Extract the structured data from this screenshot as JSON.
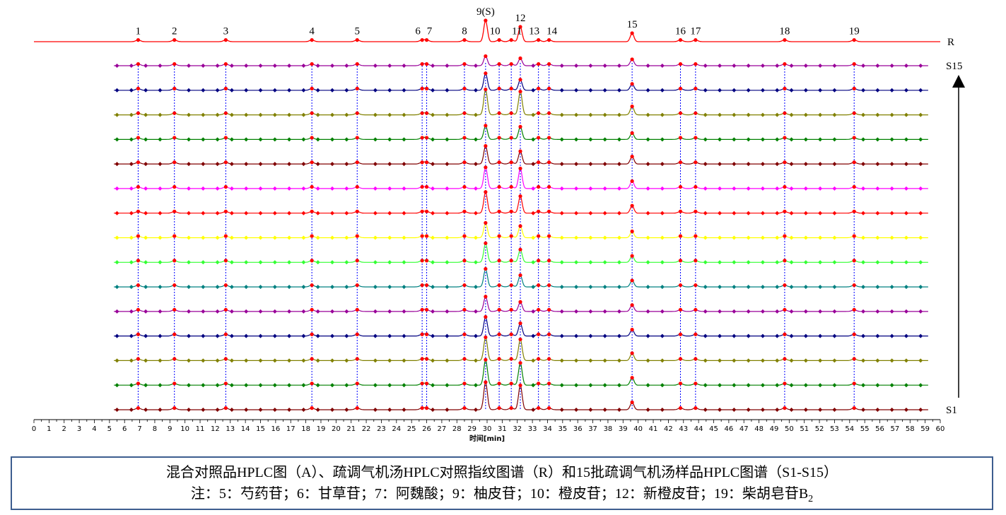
{
  "chart_data": {
    "type": "line",
    "title": "",
    "xlabel": "时间[min]",
    "ylabel": "",
    "xlim": [
      0,
      60
    ],
    "x_ticks": [
      "0",
      "1",
      "2",
      "3",
      "4",
      "5",
      "6",
      "7",
      "8",
      "9",
      "10",
      "11",
      "12",
      "13",
      "14",
      "15",
      "16",
      "17",
      "18",
      "19",
      "20",
      "21",
      "22",
      "23",
      "24",
      "25",
      "26",
      "27",
      "28",
      "29",
      "30",
      "31",
      "32",
      "33",
      "34",
      "35",
      "36",
      "37",
      "38",
      "39",
      "40",
      "41",
      "42",
      "43",
      "44",
      "45",
      "46",
      "47",
      "48",
      "49",
      "50",
      "51",
      "52",
      "53",
      "54",
      "55",
      "56",
      "57",
      "58",
      "59",
      "60"
    ],
    "peaks": [
      {
        "label": "1",
        "rt": 6.9
      },
      {
        "label": "2",
        "rt": 9.3
      },
      {
        "label": "3",
        "rt": 12.7
      },
      {
        "label": "4",
        "rt": 18.4
      },
      {
        "label": "5",
        "rt": 21.4
      },
      {
        "label": "6",
        "rt": 25.7
      },
      {
        "label": "7",
        "rt": 26.0
      },
      {
        "label": "8",
        "rt": 28.5
      },
      {
        "label": "9(S)",
        "rt": 29.9
      },
      {
        "label": "10",
        "rt": 30.8
      },
      {
        "label": "11",
        "rt": 31.6
      },
      {
        "label": "12",
        "rt": 32.2
      },
      {
        "label": "13",
        "rt": 33.4
      },
      {
        "label": "14",
        "rt": 34.1
      },
      {
        "label": "15",
        "rt": 39.6
      },
      {
        "label": "16",
        "rt": 42.8
      },
      {
        "label": "17",
        "rt": 43.8
      },
      {
        "label": "18",
        "rt": 49.7
      },
      {
        "label": "19",
        "rt": 54.3
      }
    ],
    "series": [
      {
        "name": "R",
        "color": "#ff0000",
        "heights": {
          "9(S)": 1.0,
          "12": 0.7,
          "15": 0.4
        }
      },
      {
        "name": "S15",
        "color": "#990099",
        "heights": {
          "9(S)": 0.45,
          "12": 0.35,
          "15": 0.3
        }
      },
      {
        "name": "",
        "color": "#000080",
        "heights": {
          "9(S)": 0.8,
          "12": 0.5,
          "15": 0.3
        }
      },
      {
        "name": "",
        "color": "#808000",
        "heights": {
          "9(S)": 1.2,
          "12": 1.1,
          "15": 0.4
        }
      },
      {
        "name": "",
        "color": "#008000",
        "heights": {
          "9(S)": 0.65,
          "12": 0.6,
          "15": 0.3
        }
      },
      {
        "name": "",
        "color": "#800000",
        "heights": {
          "9(S)": 0.85,
          "12": 0.6,
          "15": 0.35
        }
      },
      {
        "name": "",
        "color": "#ff00ff",
        "heights": {
          "9(S)": 1.0,
          "12": 0.95,
          "15": 0.35
        }
      },
      {
        "name": "",
        "color": "#ff0000",
        "heights": {
          "9(S)": 1.0,
          "12": 0.8,
          "15": 0.35
        }
      },
      {
        "name": "",
        "color": "#ffff00",
        "heights": {
          "9(S)": 0.7,
          "12": 0.55,
          "15": 0.3
        }
      },
      {
        "name": "",
        "color": "#33ff33",
        "heights": {
          "9(S)": 0.9,
          "12": 0.6,
          "15": 0.3
        }
      },
      {
        "name": "",
        "color": "#008080",
        "heights": {
          "9(S)": 0.85,
          "12": 0.55,
          "15": 0.3
        }
      },
      {
        "name": "",
        "color": "#990099",
        "heights": {
          "9(S)": 0.7,
          "12": 0.45,
          "15": 0.3
        }
      },
      {
        "name": "",
        "color": "#000080",
        "heights": {
          "9(S)": 0.9,
          "12": 0.6,
          "15": 0.3
        }
      },
      {
        "name": "",
        "color": "#808000",
        "heights": {
          "9(S)": 1.1,
          "12": 1.0,
          "15": 0.35
        }
      },
      {
        "name": "",
        "color": "#008000",
        "heights": {
          "9(S)": 1.2,
          "12": 1.05,
          "15": 0.35
        }
      },
      {
        "name": "S1",
        "color": "#800000",
        "heights": {
          "9(S)": 1.3,
          "12": 1.15,
          "15": 0.35
        }
      }
    ]
  },
  "caption": {
    "line1": "混合对照品HPLC图（A）、疏调气机汤HPLC对照指纹图谱（R）和15批疏调气机汤样品HPLC图谱（S1-S15）",
    "line2_prefix": "注：5：芍药苷；6：甘草苷；7：阿魏酸；9：柚皮苷；10：橙皮苷；12：新橙皮苷；19：柴胡皂苷B",
    "line2_sub": "2"
  },
  "colors": {
    "marker_lines": "#0000ff",
    "caption_border": "#3d5d8f"
  }
}
